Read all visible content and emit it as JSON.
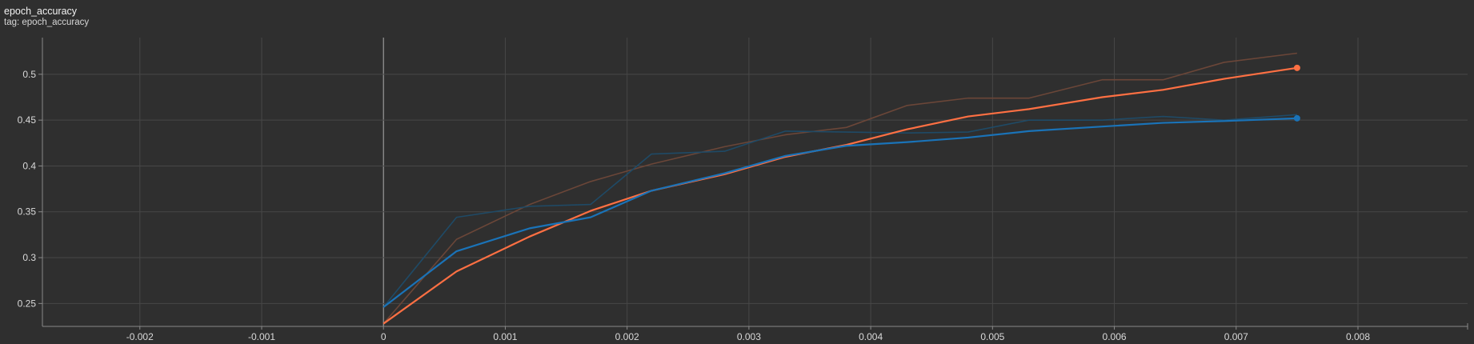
{
  "header": {
    "title": "epoch_accuracy",
    "tag": "tag: epoch_accuracy"
  },
  "chart_data": {
    "type": "line",
    "title": "epoch_accuracy",
    "xlabel": "",
    "ylabel": "",
    "xlim": [
      -0.0028,
      0.0089
    ],
    "ylim": [
      0.225,
      0.54
    ],
    "grid": true,
    "xticks": [
      -0.002,
      -0.001,
      0,
      0.001,
      0.002,
      0.003,
      0.004,
      0.005,
      0.006,
      0.007,
      0.008
    ],
    "xtick_labels": [
      "-0.002",
      "-0.001",
      "0",
      "0.001",
      "0.002",
      "0.003",
      "0.004",
      "0.005",
      "0.006",
      "0.007",
      "0.008"
    ],
    "yticks": [
      0.25,
      0.3,
      0.35,
      0.4,
      0.45,
      0.5
    ],
    "ytick_labels": [
      "0.25",
      "0.3",
      "0.35",
      "0.4",
      "0.45",
      "0.5"
    ],
    "series": [
      {
        "color": "#ff7043",
        "raw_color": "#6b4638",
        "x": [
          0,
          0.0006,
          0.0012,
          0.0017,
          0.0022,
          0.0028,
          0.0033,
          0.0038,
          0.0043,
          0.0048,
          0.0053,
          0.0059,
          0.0064,
          0.0069,
          0.0075
        ],
        "smoothed": [
          0.228,
          0.285,
          0.323,
          0.351,
          0.373,
          0.391,
          0.41,
          0.423,
          0.44,
          0.454,
          0.462,
          0.475,
          0.483,
          0.495,
          0.507
        ],
        "raw": [
          0.228,
          0.32,
          0.358,
          0.383,
          0.402,
          0.421,
          0.434,
          0.442,
          0.466,
          0.474,
          0.474,
          0.494,
          0.494,
          0.513,
          0.523
        ]
      },
      {
        "color": "#1a73b8",
        "raw_color": "#1f4a66",
        "x": [
          0,
          0.0006,
          0.0012,
          0.0017,
          0.0022,
          0.0028,
          0.0033,
          0.0038,
          0.0043,
          0.0048,
          0.0053,
          0.0059,
          0.0064,
          0.0069,
          0.0075
        ],
        "smoothed": [
          0.246,
          0.307,
          0.332,
          0.344,
          0.373,
          0.392,
          0.411,
          0.422,
          0.426,
          0.431,
          0.438,
          0.443,
          0.447,
          0.449,
          0.452
        ],
        "raw": [
          0.246,
          0.344,
          0.356,
          0.358,
          0.413,
          0.416,
          0.438,
          0.437,
          0.436,
          0.437,
          0.45,
          0.45,
          0.454,
          0.45,
          0.456
        ]
      }
    ]
  }
}
